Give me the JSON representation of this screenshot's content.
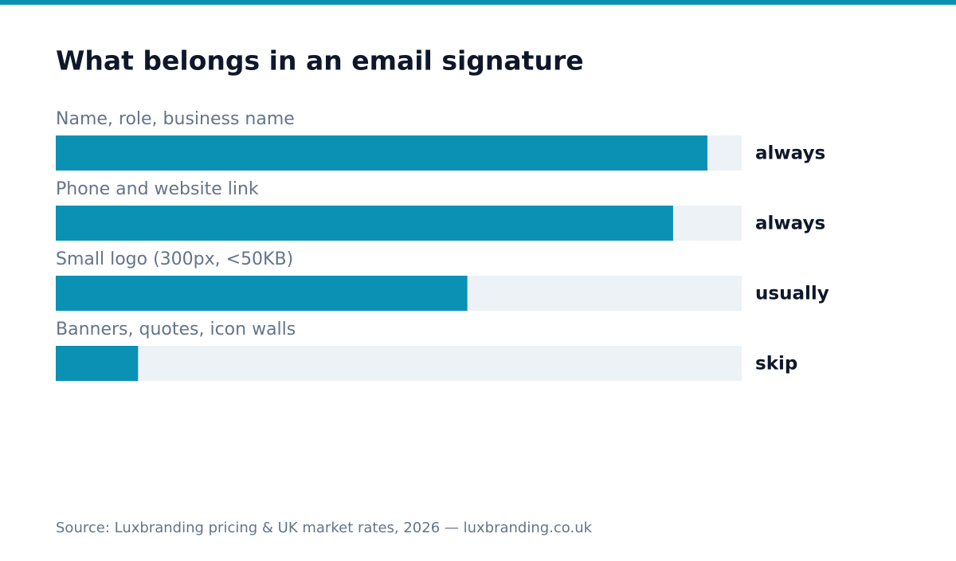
{
  "chart_data": {
    "type": "bar",
    "orientation": "horizontal",
    "title": "What belongs in an email signature",
    "categories": [
      "Name, role, business name",
      "Phone and website link",
      "Small logo (300px, <50KB)",
      "Banners, quotes, icon walls"
    ],
    "values": [
      95,
      90,
      60,
      12
    ],
    "value_labels": [
      "always",
      "always",
      "usually",
      "skip"
    ],
    "color": "#0a91b4",
    "xlim": [
      0,
      100
    ],
    "source": "Source: Luxbranding pricing & UK market rates, 2026 — luxbranding.co.uk"
  }
}
